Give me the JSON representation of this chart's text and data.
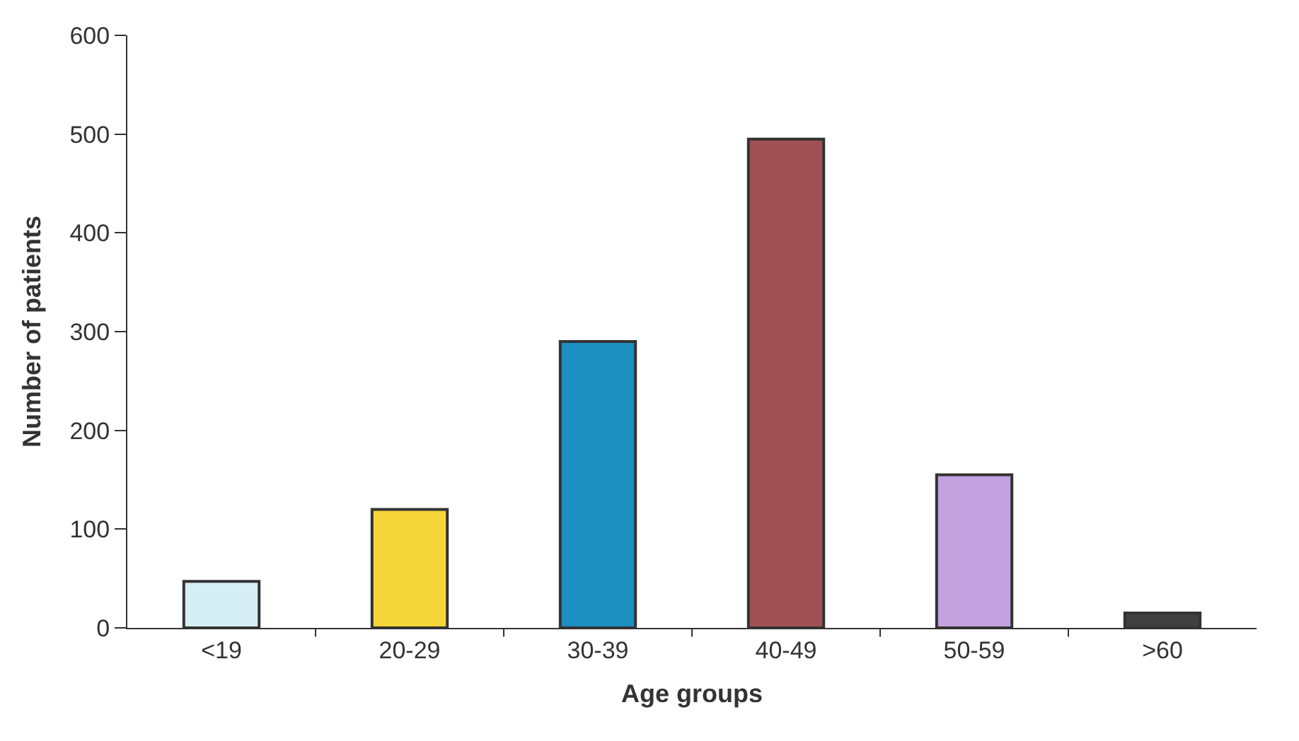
{
  "chart_data": {
    "type": "bar",
    "xlabel": "Age groups",
    "ylabel": "Number of patients",
    "categories": [
      "<19",
      "20-29",
      "30-39",
      "40-49",
      "50-59",
      ">60"
    ],
    "values": [
      47,
      120,
      290,
      495,
      155,
      15
    ],
    "colors": [
      "#d6eef5",
      "#f5d63a",
      "#1a8fc0",
      "#a05055",
      "#c3a2e0",
      "#404040"
    ],
    "ylim": [
      0,
      600
    ],
    "yticks": [
      0,
      100,
      200,
      300,
      400,
      500,
      600
    ],
    "legend": false
  }
}
